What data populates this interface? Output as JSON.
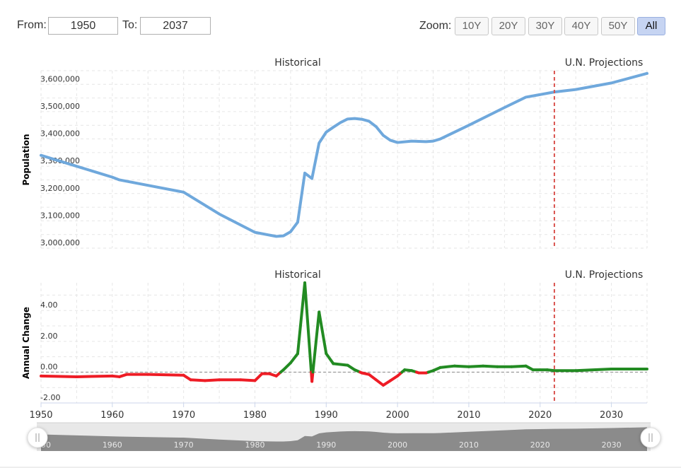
{
  "range": {
    "from_label": "From:",
    "from_value": "1950",
    "to_label": "To:",
    "to_value": "2037"
  },
  "zoom": {
    "label": "Zoom:",
    "buttons": [
      "10Y",
      "20Y",
      "30Y",
      "40Y",
      "50Y",
      "All"
    ],
    "active": "All"
  },
  "colors": {
    "population_line": "#6fa8dc",
    "change_positive": "#228b22",
    "change_negative": "#ee1c25",
    "projection_marker": "#d9534f",
    "navigator_fill": "#7a7a7a"
  },
  "chart_data": [
    {
      "type": "line",
      "ylabel": "Population",
      "region_labels": [
        "Historical",
        "U.N. Projections"
      ],
      "projection_start_year": 2022,
      "xlim": [
        1950,
        2035
      ],
      "ylim": [
        3000000,
        3650000
      ],
      "yticks": [
        3000000,
        3100000,
        3200000,
        3300000,
        3400000,
        3500000,
        3600000
      ],
      "ytick_labels": [
        "3,000,000",
        "3,100,000",
        "3,200,000",
        "3,300,000",
        "3,400,000",
        "3,500,000",
        "3,600,000"
      ],
      "grid": true,
      "x": [
        1950,
        1955,
        1960,
        1961,
        1965,
        1970,
        1975,
        1980,
        1983,
        1984,
        1985,
        1986,
        1987,
        1988,
        1989,
        1990,
        1991,
        1992,
        1993,
        1994,
        1995,
        1996,
        1997,
        1998,
        1999,
        2000,
        2002,
        2004,
        2005,
        2006,
        2010,
        2015,
        2018,
        2022,
        2025,
        2030,
        2035
      ],
      "y": [
        3340000,
        3300000,
        3260000,
        3250000,
        3230000,
        3205000,
        3125000,
        3058000,
        3043000,
        3045000,
        3060000,
        3095000,
        3275000,
        3255000,
        3385000,
        3425000,
        3443000,
        3460000,
        3473000,
        3475000,
        3472000,
        3465000,
        3445000,
        3413000,
        3395000,
        3387000,
        3392000,
        3390000,
        3392000,
        3400000,
        3450000,
        3515000,
        3553000,
        3572000,
        3581000,
        3605000,
        3640000
      ]
    },
    {
      "type": "line",
      "ylabel": "Annual Change",
      "region_labels": [
        "Historical",
        "U.N. Projections"
      ],
      "projection_start_year": 2022,
      "xlim": [
        1950,
        2035
      ],
      "ylim": [
        -2,
        5.8
      ],
      "yticks": [
        -2,
        0,
        2,
        4
      ],
      "ytick_labels": [
        "-2.00",
        "0.00",
        "2.00",
        "4.00"
      ],
      "xticks": [
        1950,
        1960,
        1970,
        1980,
        1990,
        2000,
        2010,
        2020,
        2030
      ],
      "grid": true,
      "x": [
        1950,
        1955,
        1960,
        1961,
        1962,
        1965,
        1970,
        1971,
        1973,
        1975,
        1978,
        1980,
        1981,
        1982,
        1983,
        1984,
        1985,
        1986,
        1987,
        1988,
        1989,
        1990,
        1991,
        1993,
        1994,
        1995,
        1996,
        1997,
        1998,
        1999,
        2000,
        2001,
        2002,
        2003,
        2004,
        2005,
        2006,
        2008,
        2010,
        2012,
        2014,
        2016,
        2018,
        2019,
        2021,
        2022,
        2025,
        2030,
        2035
      ],
      "y": [
        -0.25,
        -0.3,
        -0.25,
        -0.3,
        -0.15,
        -0.15,
        -0.2,
        -0.5,
        -0.55,
        -0.5,
        -0.5,
        -0.55,
        -0.1,
        -0.1,
        -0.25,
        0.15,
        0.6,
        1.2,
        5.8,
        -0.6,
        3.9,
        1.2,
        0.55,
        0.45,
        0.15,
        -0.05,
        -0.15,
        -0.5,
        -0.85,
        -0.55,
        -0.25,
        0.15,
        0.1,
        -0.05,
        -0.05,
        0.1,
        0.3,
        0.4,
        0.35,
        0.4,
        0.35,
        0.35,
        0.4,
        0.15,
        0.15,
        0.1,
        0.1,
        0.2,
        0.2
      ]
    }
  ],
  "navigator": {
    "xticks": [
      1950,
      1960,
      1970,
      1980,
      1990,
      2000,
      2010,
      2020,
      2030
    ],
    "tick_labels": [
      "1950",
      "1960",
      "1970",
      "1980",
      "1990",
      "2000",
      "2010",
      "2020",
      "2030"
    ]
  }
}
